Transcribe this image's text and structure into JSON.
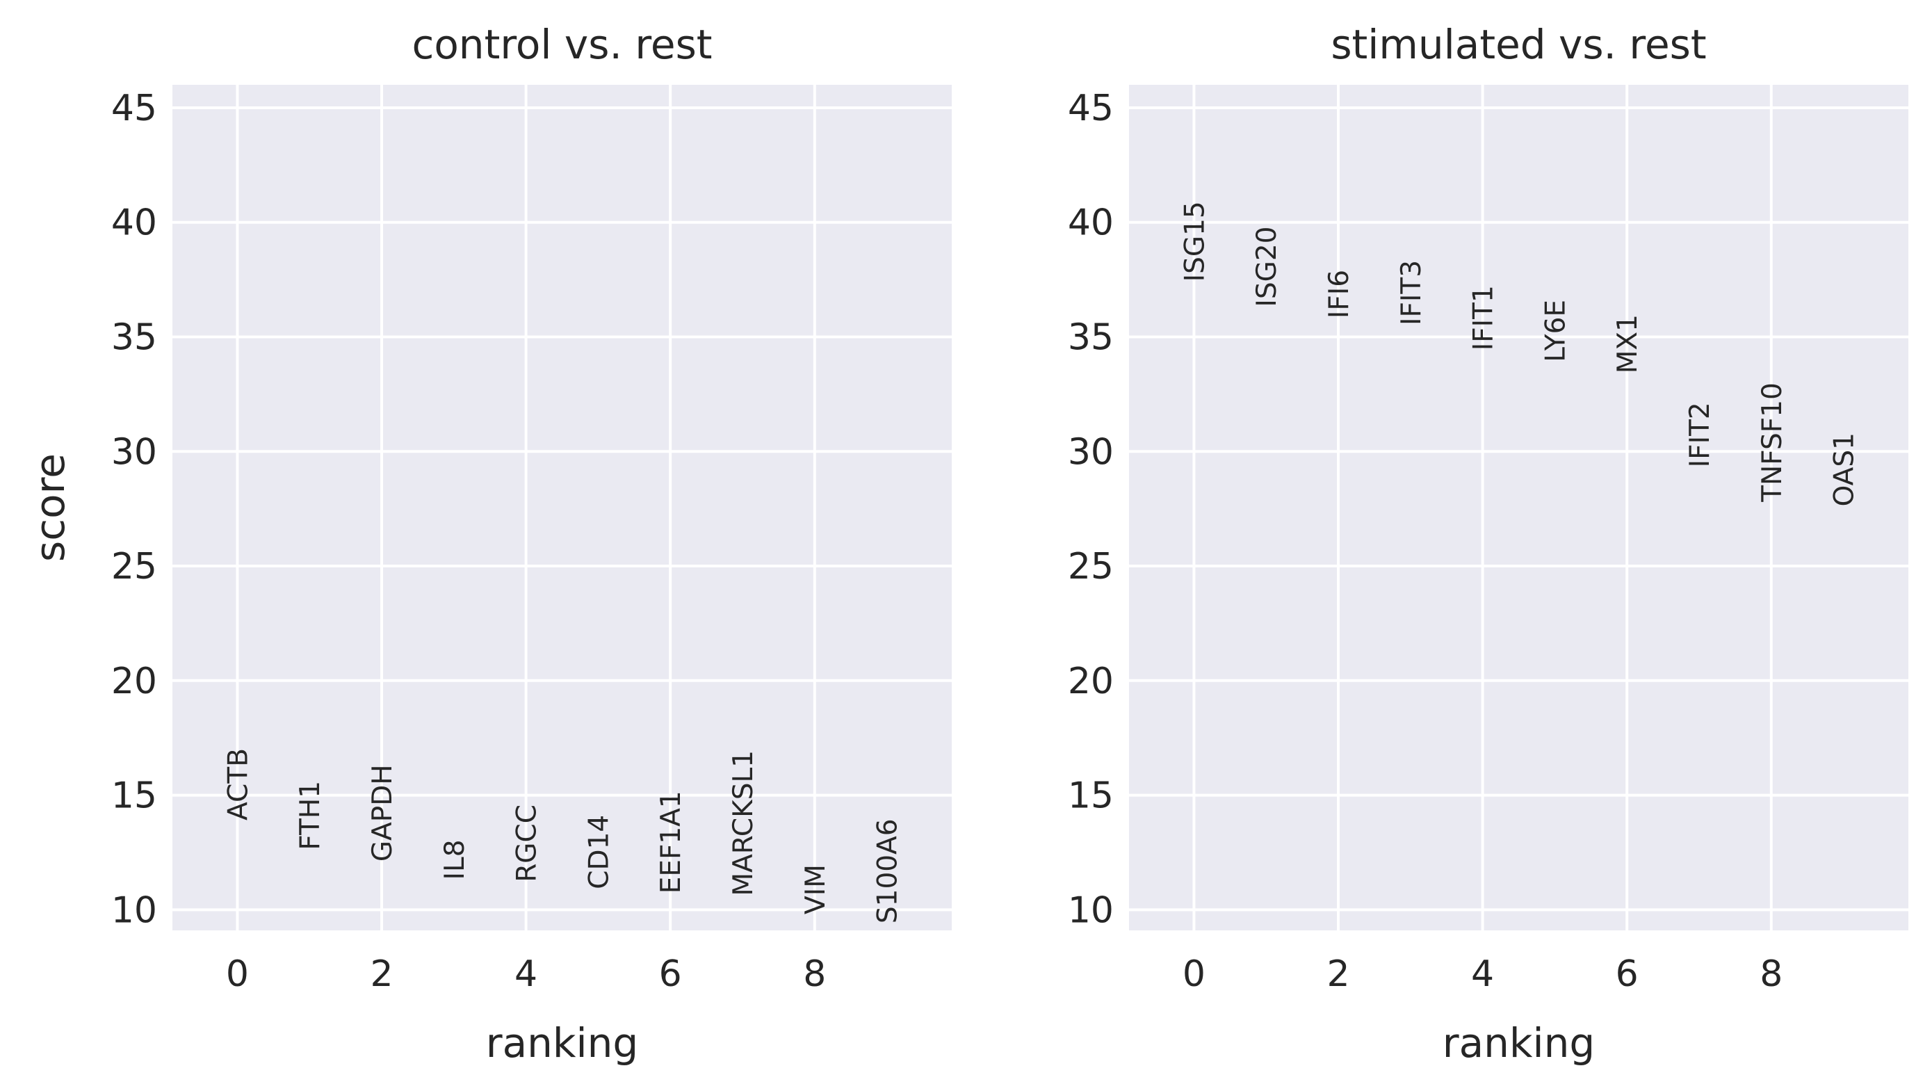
{
  "chart_data": [
    {
      "type": "scatter",
      "title": "control vs. rest",
      "xlabel": "ranking",
      "ylabel": "score",
      "xlim": [
        -0.9,
        9.9
      ],
      "ylim": [
        9.1,
        46.0
      ],
      "xticks": [
        0,
        2,
        4,
        6,
        8
      ],
      "yticks": [
        10,
        15,
        20,
        25,
        30,
        35,
        40,
        45
      ],
      "grid": true,
      "points": [
        {
          "x": 0,
          "y": 13.9,
          "label": "ACTB"
        },
        {
          "x": 1,
          "y": 12.6,
          "label": "FTH1"
        },
        {
          "x": 2,
          "y": 12.1,
          "label": "GAPDH"
        },
        {
          "x": 3,
          "y": 11.3,
          "label": "IL8"
        },
        {
          "x": 4,
          "y": 11.2,
          "label": "RGCC"
        },
        {
          "x": 5,
          "y": 10.9,
          "label": "CD14"
        },
        {
          "x": 6,
          "y": 10.7,
          "label": "EEF1A1"
        },
        {
          "x": 7,
          "y": 10.6,
          "label": "MARCKSL1"
        },
        {
          "x": 8,
          "y": 9.8,
          "label": "VIM"
        },
        {
          "x": 9,
          "y": 9.4,
          "label": "S100A6"
        }
      ]
    },
    {
      "type": "scatter",
      "title": "stimulated vs. rest",
      "xlabel": "ranking",
      "ylabel": "",
      "xlim": [
        -0.9,
        9.9
      ],
      "ylim": [
        9.1,
        46.0
      ],
      "xticks": [
        0,
        2,
        4,
        6,
        8
      ],
      "yticks": [
        10,
        15,
        20,
        25,
        30,
        35,
        40,
        45
      ],
      "grid": true,
      "points": [
        {
          "x": 0,
          "y": 37.4,
          "label": "ISG15"
        },
        {
          "x": 1,
          "y": 36.3,
          "label": "ISG20"
        },
        {
          "x": 2,
          "y": 35.8,
          "label": "IFI6"
        },
        {
          "x": 3,
          "y": 35.5,
          "label": "IFIT3"
        },
        {
          "x": 4,
          "y": 34.4,
          "label": "IFIT1"
        },
        {
          "x": 5,
          "y": 33.9,
          "label": "LY6E"
        },
        {
          "x": 6,
          "y": 33.4,
          "label": "MX1"
        },
        {
          "x": 7,
          "y": 29.3,
          "label": "IFIT2"
        },
        {
          "x": 8,
          "y": 27.8,
          "label": "TNFSF10"
        },
        {
          "x": 9,
          "y": 27.6,
          "label": "OAS1"
        }
      ]
    }
  ]
}
